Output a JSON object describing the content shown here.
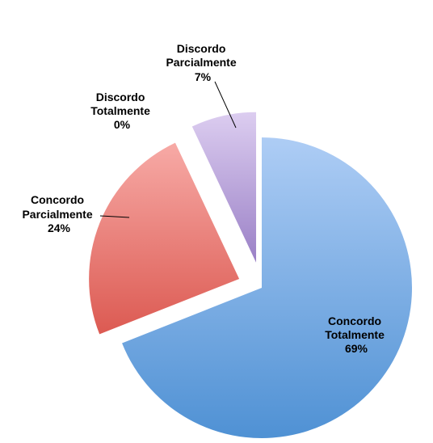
{
  "chart_data": {
    "type": "pie",
    "title": "",
    "legend": "none",
    "labels_style": "outside-with-leaders",
    "series": [
      {
        "slices": [
          {
            "name": "Concordo Totalmente",
            "label_lines": [
              "Concordo",
              "Totalmente"
            ],
            "value_label": "69%",
            "value": 69,
            "color_light": "#aecdf5",
            "color_dark": "#4f91d4"
          },
          {
            "name": "Concordo Parcialmente",
            "label_lines": [
              "Concordo",
              "Parcialmente"
            ],
            "value_label": "24%",
            "value": 24,
            "color_light": "#f7aaa6",
            "color_dark": "#dc5a52"
          },
          {
            "name": "Discordo Totalmente",
            "label_lines": [
              "Discordo",
              "Totalmente"
            ],
            "value_label": "0%",
            "value": 0,
            "color_light": "#d9d9d9",
            "color_dark": "#9a9a9a"
          },
          {
            "name": "Discordo Parcialmente",
            "label_lines": [
              "Discordo",
              "Parcialmente"
            ],
            "value_label": "7%",
            "value": 7,
            "color_light": "#dccdf0",
            "color_dark": "#9a80c6"
          }
        ]
      }
    ]
  }
}
